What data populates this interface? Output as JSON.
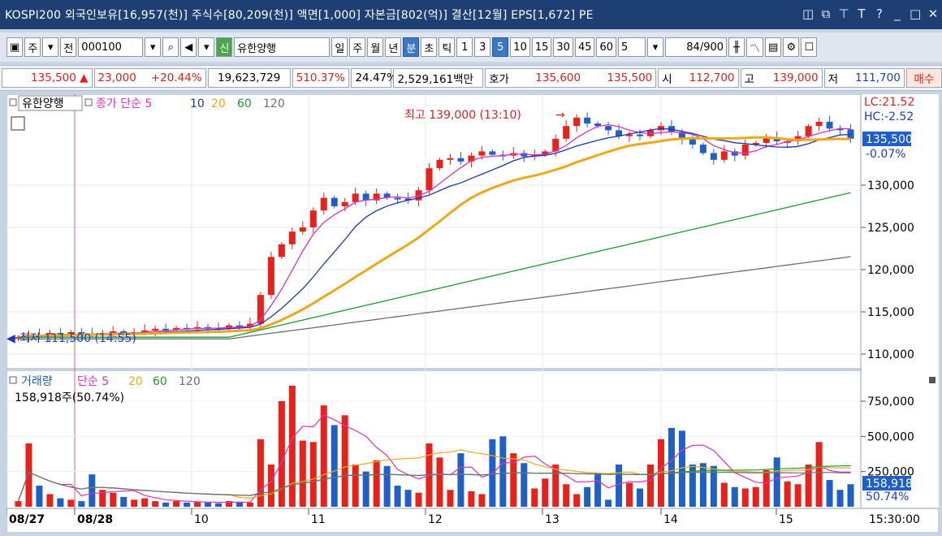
{
  "titlebar": {
    "title": "KOSPI200 외국인보유[16,957(천)] 주식수[80,209(천)] 액면[1,000] 자본금[802(억)] 결산[12월] EPS[1,672] PE"
  },
  "toolbar": {
    "market_label": "주",
    "jeon_label": "전",
    "code": "000100",
    "name": "유한양행",
    "periods": [
      "일",
      "주",
      "월",
      "년",
      "분",
      "초",
      "틱"
    ],
    "selected_period": "분",
    "intervals": [
      "1",
      "3",
      "5",
      "10",
      "15",
      "30",
      "45",
      "60"
    ],
    "selected_interval": "5",
    "count_value": "5",
    "bars_value": "84",
    "bars_max": "/900"
  },
  "quote": {
    "price": "135,500",
    "change": "23,000",
    "change_pct": "+20.44%",
    "volume": "19,623,729",
    "vol_ratio": "510.37%",
    "turnover": "24.47%",
    "amount": "2,529,161백만",
    "ask_label": "호가",
    "ask": "135,600",
    "bid": "135,500",
    "open_label": "시",
    "open": "112,700",
    "high_label": "고",
    "high": "139,000",
    "low_label": "저",
    "low": "111,700",
    "buy_label": "매수"
  },
  "price_panel": {
    "title": "유한양행",
    "ma_label": "종가 단순",
    "ma_periods": [
      "5",
      "10",
      "20",
      "60",
      "120"
    ],
    "max_annotation": "최고 139,000 (13:10)",
    "min_annotation": "최저 111,500 (14:55)",
    "lc": "LC:21.52",
    "hc": "HC:-2.52",
    "last_price": "135,500",
    "last_pct": "-0.07%",
    "y_ticks": [
      "130,000",
      "125,000",
      "120,000",
      "115,000",
      "110,000"
    ]
  },
  "volume_panel": {
    "title": "거래량",
    "ma_label": "단순",
    "ma_periods": [
      "5",
      "20",
      "60",
      "120"
    ],
    "info": "158,918주(50.74%)",
    "last_volume": "158,918",
    "last_pct": "50.74%",
    "y_ticks": [
      "750,000",
      "500,000",
      "250,000"
    ]
  },
  "x_axis": {
    "labels": [
      "08/27",
      "08/28",
      "10",
      "11",
      "12",
      "13",
      "14",
      "15"
    ],
    "time": "15:30:00"
  },
  "colors": {
    "up": "#e8221a",
    "down": "#1f5fc8",
    "ma5": "#e030c0",
    "ma10": "#1a35b8",
    "ma20": "#f0a818",
    "ma60": "#1a9a30",
    "ma120": "#707070"
  }
}
